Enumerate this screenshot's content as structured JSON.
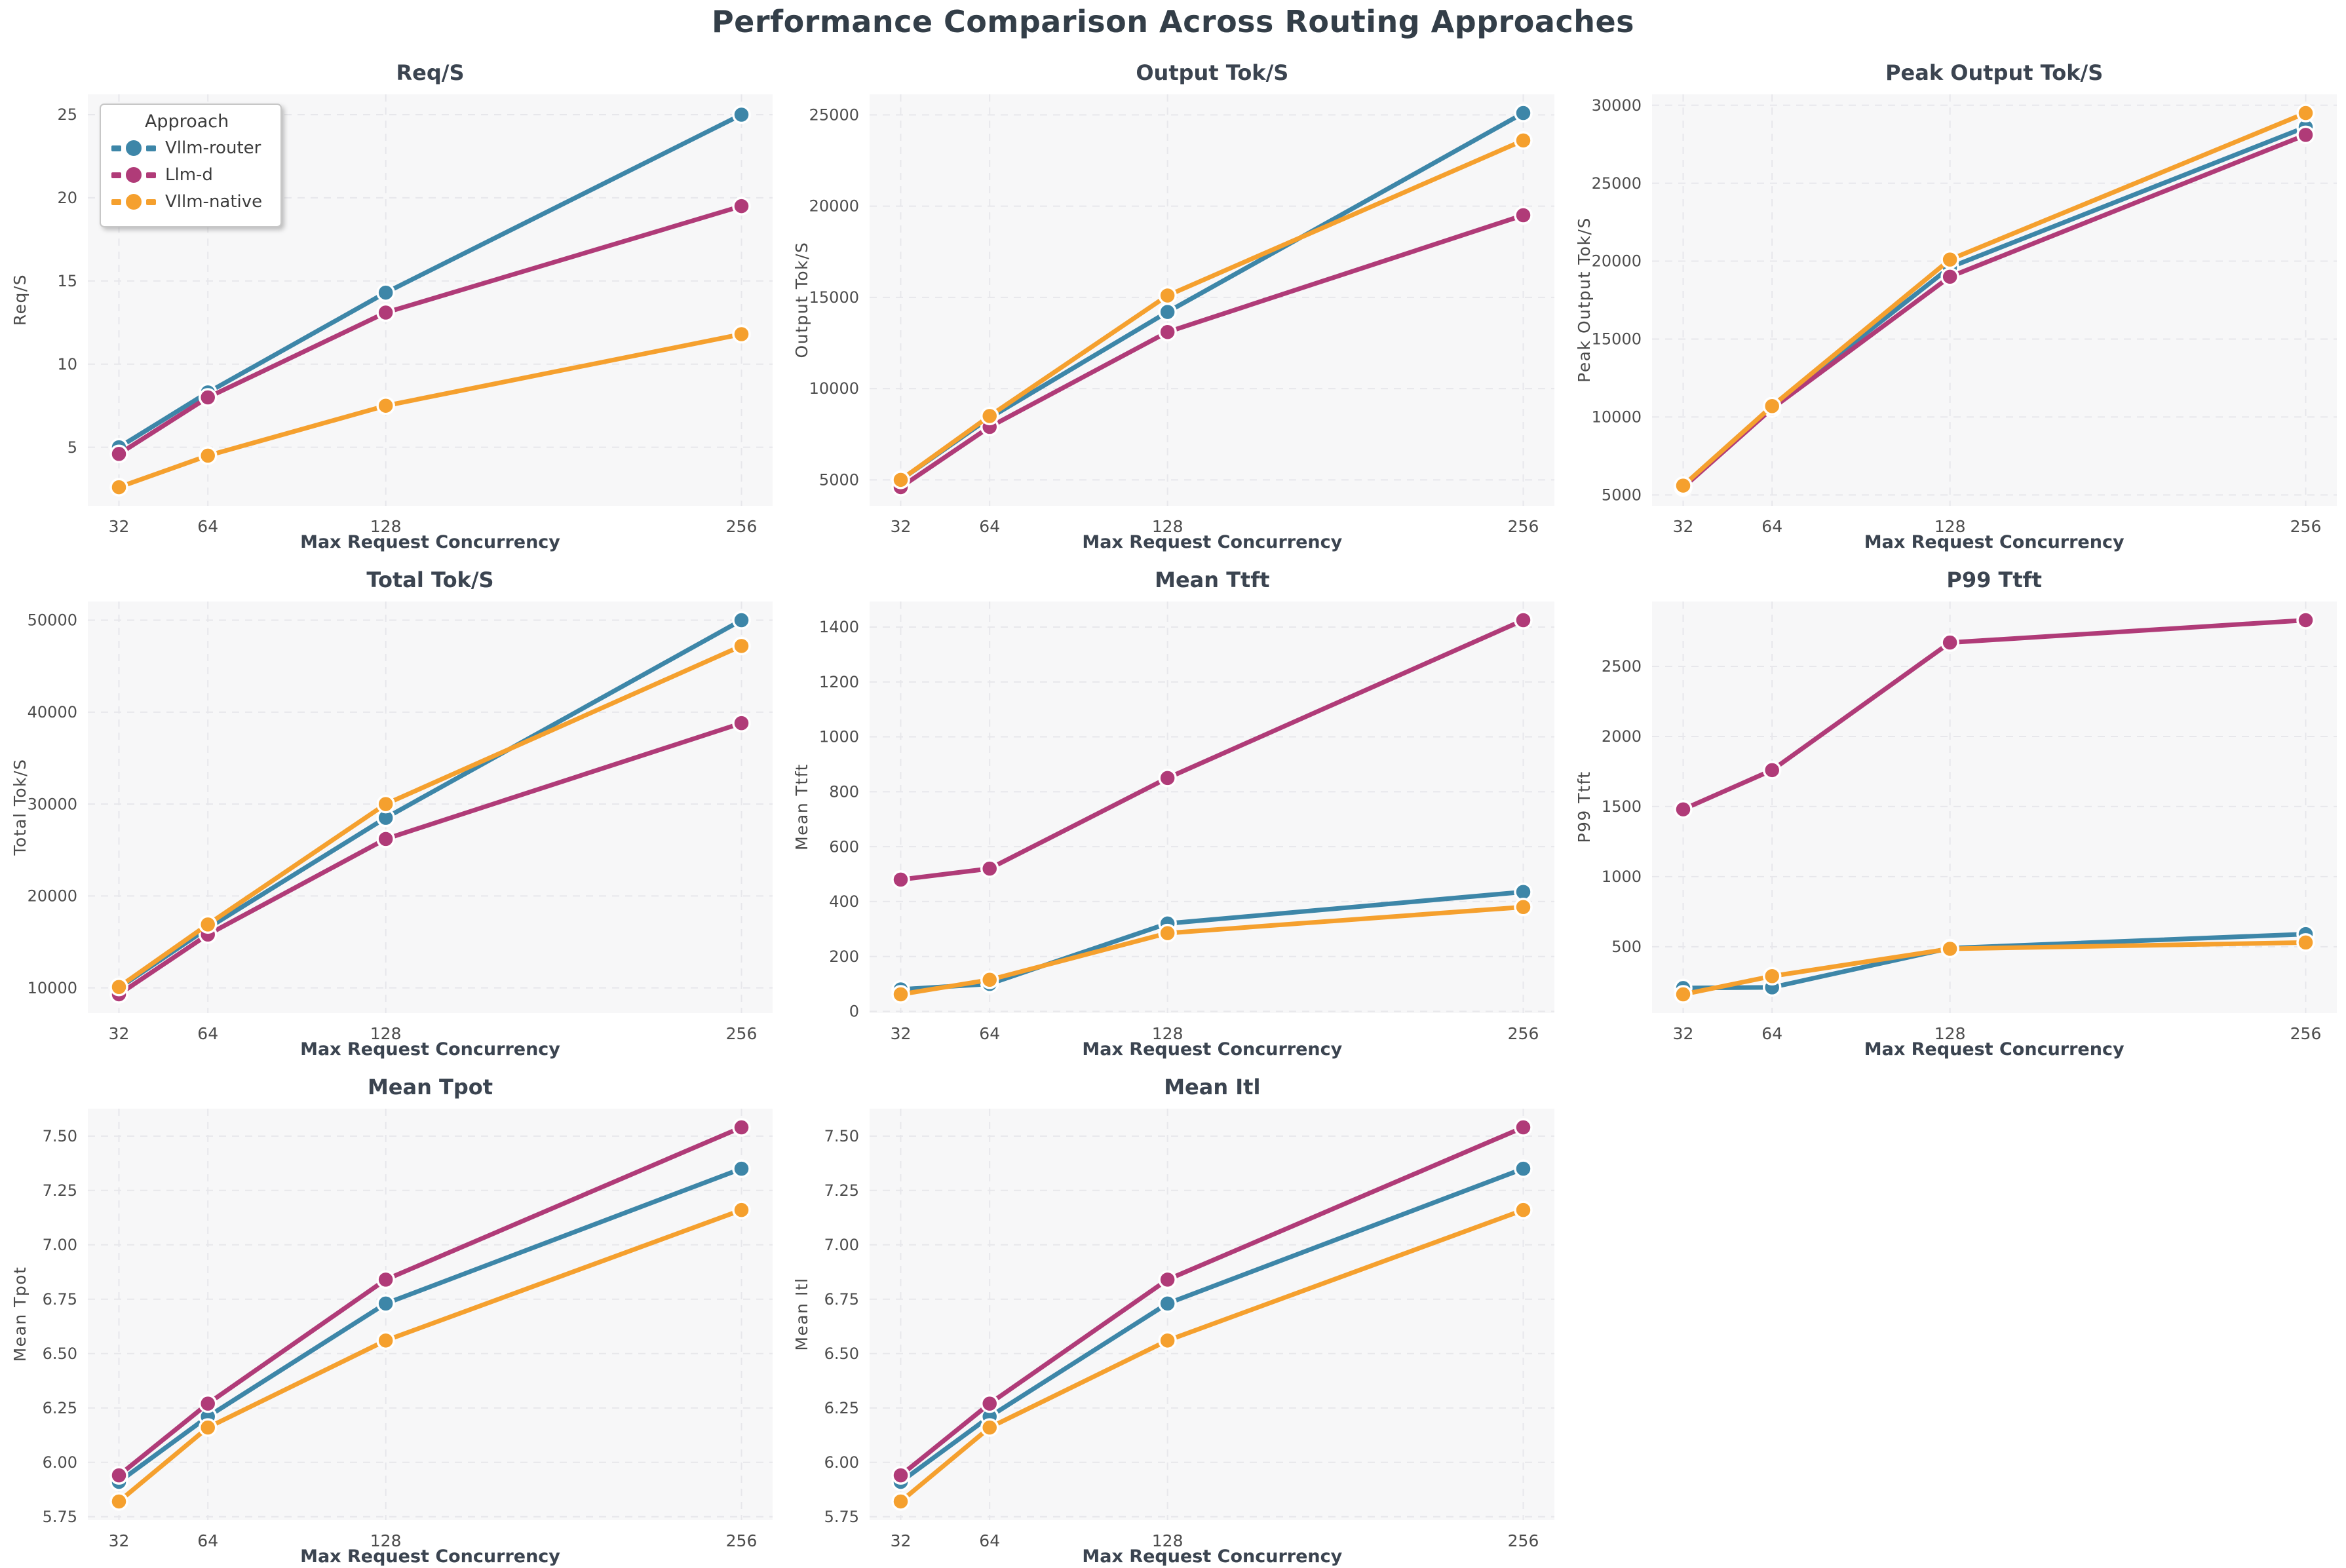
{
  "page_title": "Performance Comparison Across Routing Approaches",
  "approaches": [
    {
      "name": "Vllm-router",
      "color": "#3d86a8"
    },
    {
      "name": "Llm-d",
      "color": "#b03b78"
    },
    {
      "name": "Vllm-native",
      "color": "#f5a02e"
    }
  ],
  "legend": {
    "title": "Approach"
  },
  "axis": {
    "xlabel": "Max Request Concurrency",
    "x_ticks": [
      32,
      64,
      128,
      256
    ],
    "xlim": [
      20.8,
      267.2
    ]
  },
  "chart_data": [
    {
      "type": "line",
      "title": "Req/S",
      "ylabel": "Req/S",
      "x": [
        32,
        64,
        128,
        256
      ],
      "series": [
        {
          "name": "Vllm-router",
          "values": [
            5.0,
            8.3,
            14.3,
            25.0
          ]
        },
        {
          "name": "Llm-d",
          "values": [
            4.6,
            8.0,
            13.1,
            19.5
          ]
        },
        {
          "name": "Vllm-native",
          "values": [
            2.6,
            4.5,
            7.5,
            11.8
          ]
        }
      ],
      "yticks": [
        5,
        10,
        15,
        20,
        25
      ],
      "ylim": [
        1.48,
        26.22
      ],
      "tick_decimals": 0,
      "grid": true,
      "legend_position": "upper-left"
    },
    {
      "type": "line",
      "title": "Output Tok/S",
      "ylabel": "Output Tok/S",
      "x": [
        32,
        64,
        128,
        256
      ],
      "series": [
        {
          "name": "Vllm-router",
          "values": [
            5000,
            8400,
            14200,
            25100
          ]
        },
        {
          "name": "Llm-d",
          "values": [
            4600,
            7900,
            13100,
            19500
          ]
        },
        {
          "name": "Vllm-native",
          "values": [
            5000,
            8500,
            15100,
            23600
          ]
        }
      ],
      "yticks": [
        5000,
        10000,
        15000,
        20000,
        25000
      ],
      "ylim": [
        3575,
        26125
      ],
      "tick_decimals": 0,
      "grid": true
    },
    {
      "type": "line",
      "title": "Peak Output Tok/S",
      "ylabel": "Peak Output Tok/S",
      "x": [
        32,
        64,
        128,
        256
      ],
      "series": [
        {
          "name": "Vllm-router",
          "values": [
            5550,
            10650,
            19600,
            28600
          ]
        },
        {
          "name": "Llm-d",
          "values": [
            5480,
            10550,
            19000,
            28100
          ]
        },
        {
          "name": "Vllm-native",
          "values": [
            5600,
            10700,
            20100,
            29500
          ]
        }
      ],
      "yticks": [
        5000,
        10000,
        15000,
        20000,
        25000,
        30000
      ],
      "ylim": [
        4300,
        30700
      ],
      "tick_decimals": 0,
      "grid": true
    },
    {
      "type": "line",
      "title": "Total Tok/S",
      "ylabel": "Total Tok/S",
      "x": [
        32,
        64,
        128,
        256
      ],
      "series": [
        {
          "name": "Vllm-router",
          "values": [
            10000,
            16500,
            28500,
            50000
          ]
        },
        {
          "name": "Llm-d",
          "values": [
            9300,
            15800,
            26200,
            38800
          ]
        },
        {
          "name": "Vllm-native",
          "values": [
            10100,
            16900,
            30000,
            47200
          ]
        }
      ],
      "yticks": [
        10000,
        20000,
        30000,
        40000,
        50000
      ],
      "ylim": [
        7265,
        52035
      ],
      "tick_decimals": 0,
      "grid": true
    },
    {
      "type": "line",
      "title": "Mean Ttft",
      "ylabel": "Mean Ttft",
      "x": [
        32,
        64,
        128,
        256
      ],
      "series": [
        {
          "name": "Vllm-router",
          "values": [
            80,
            100,
            320,
            435
          ]
        },
        {
          "name": "Llm-d",
          "values": [
            480,
            520,
            850,
            1425
          ]
        },
        {
          "name": "Vllm-native",
          "values": [
            62,
            115,
            285,
            380
          ]
        }
      ],
      "yticks": [
        0,
        200,
        400,
        600,
        800,
        1000,
        1200,
        1400
      ],
      "ylim": [
        -6,
        1493
      ],
      "tick_decimals": 0,
      "grid": true
    },
    {
      "type": "line",
      "title": "P99 Ttft",
      "ylabel": "P99 Ttft",
      "x": [
        32,
        64,
        128,
        256
      ],
      "series": [
        {
          "name": "Vllm-router",
          "values": [
            205,
            210,
            490,
            590
          ]
        },
        {
          "name": "Llm-d",
          "values": [
            1480,
            1760,
            2670,
            2830
          ]
        },
        {
          "name": "Vllm-native",
          "values": [
            160,
            290,
            485,
            530
          ]
        }
      ],
      "yticks": [
        500,
        1000,
        1500,
        2000,
        2500
      ],
      "ylim": [
        27,
        2963
      ],
      "tick_decimals": 0,
      "grid": true
    },
    {
      "type": "line",
      "title": "Mean Tpot",
      "ylabel": "Mean Tpot",
      "x": [
        32,
        64,
        128,
        256
      ],
      "series": [
        {
          "name": "Vllm-router",
          "values": [
            5.91,
            6.21,
            6.73,
            7.35
          ]
        },
        {
          "name": "Llm-d",
          "values": [
            5.94,
            6.27,
            6.84,
            7.54
          ]
        },
        {
          "name": "Vllm-native",
          "values": [
            5.82,
            6.16,
            6.56,
            7.16
          ]
        }
      ],
      "yticks": [
        5.75,
        6.0,
        6.25,
        6.5,
        6.75,
        7.0,
        7.25,
        7.5
      ],
      "ylim": [
        5.734,
        7.626
      ],
      "tick_decimals": 2,
      "grid": true
    },
    {
      "type": "line",
      "title": "Mean Itl",
      "ylabel": "Mean Itl",
      "x": [
        32,
        64,
        128,
        256
      ],
      "series": [
        {
          "name": "Vllm-router",
          "values": [
            5.91,
            6.21,
            6.73,
            7.35
          ]
        },
        {
          "name": "Llm-d",
          "values": [
            5.94,
            6.27,
            6.84,
            7.54
          ]
        },
        {
          "name": "Vllm-native",
          "values": [
            5.82,
            6.16,
            6.56,
            7.16
          ]
        }
      ],
      "yticks": [
        5.75,
        6.0,
        6.25,
        6.5,
        6.75,
        7.0,
        7.25,
        7.5
      ],
      "ylim": [
        5.734,
        7.626
      ],
      "tick_decimals": 2,
      "grid": true
    }
  ]
}
